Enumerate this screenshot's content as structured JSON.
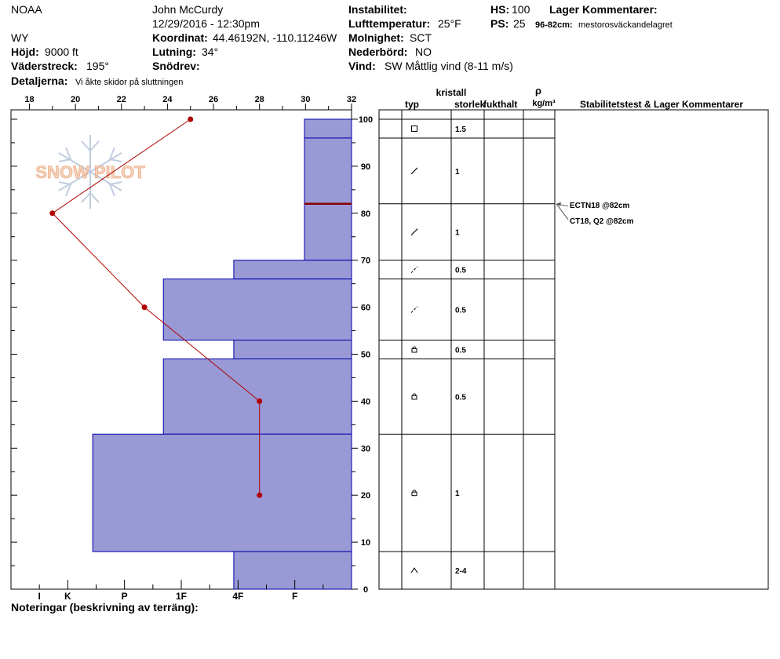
{
  "header": {
    "org": "NOAA",
    "observer": "John McCurdy",
    "datetime": "12/29/2016 - 12:30pm",
    "state": "WY",
    "coord_label": "Koordinat:",
    "coord_value": "44.46192N, -110.11246W",
    "elev_label": "Höjd:",
    "elev_value": "9000 ft",
    "slope_label": "Lutning:",
    "slope_value": "34°",
    "aspect_label": "Väderstreck:",
    "aspect_value": "195°",
    "drift_label": "Snödrev:",
    "drift_value": "",
    "details_label": "Detaljerna:",
    "details_value": "Vi åkte skidor på sluttningen",
    "instab_label": "Instabilitet:",
    "instab_value": "",
    "airtemp_label": "Lufttemperatur:",
    "airtemp_value": "25°F",
    "sky_label": "Molnighet:",
    "sky_value": "SCT",
    "precip_label": "Nederbörd:",
    "precip_value": "NO",
    "wind_label": "Vind:",
    "wind_value": "SW  Måttlig vind (8-11 m/s)",
    "hs_label": "HS:",
    "hs_value": "100",
    "ps_label": "PS:",
    "ps_value": "25",
    "layer_comments_label": "Lager Kommentarer:",
    "layer_comment_range": "96-82cm:",
    "layer_comment_text": "mestorosväckandelagret"
  },
  "logo_text": "SNOW PILOT",
  "table_headers": {
    "crystal": "kristall",
    "type": "typ",
    "size": "storlek",
    "moisture": "fukthalt",
    "rho": "ρ",
    "density_unit": "kg/m³",
    "stability": "Stabilitetstest & Lager Kommentarer"
  },
  "footer": {
    "notes_label": "Noteringar (beskrivning av terräng):"
  },
  "colors": {
    "hardness_fill": "#9999d6",
    "hardness_stroke": "#0000aa",
    "temp_line": "#b00000",
    "weak_layer": "#880000"
  },
  "chart_data": {
    "type": "snow-profile",
    "temperature_axis": {
      "label_values": [
        18,
        20,
        22,
        24,
        26,
        28,
        30,
        32
      ],
      "range": [
        17.2,
        32
      ]
    },
    "height_axis": {
      "ticks": [
        0,
        10,
        20,
        30,
        40,
        50,
        60,
        70,
        80,
        90,
        100
      ],
      "range": [
        0,
        102
      ]
    },
    "hardness_axis": {
      "labels": [
        "I",
        "K",
        "P",
        "1F",
        "4F",
        "F"
      ],
      "label_values": [
        11,
        10,
        8,
        6,
        4,
        2
      ]
    },
    "temperature_profile": [
      {
        "height": 100,
        "temp": 25
      },
      {
        "height": 80,
        "temp": 19
      },
      {
        "height": 60,
        "temp": 23
      },
      {
        "height": 40,
        "temp": 28
      },
      {
        "height": 20,
        "temp": 28
      }
    ],
    "layers": [
      {
        "top": 100,
        "bottom": 96,
        "hardness": 1.66,
        "grain": "square",
        "size": "1.5"
      },
      {
        "top": 96,
        "bottom": 82,
        "hardness": 1.66,
        "grain": "slash",
        "size": "1"
      },
      {
        "top": 82,
        "bottom": 70,
        "hardness": 1.66,
        "grain": "slash",
        "size": "1"
      },
      {
        "top": 70,
        "bottom": 66,
        "hardness": 4.15,
        "grain": "dashslash",
        "size": "0.5"
      },
      {
        "top": 66,
        "bottom": 53,
        "hardness": 6.63,
        "grain": "dashslash",
        "size": "0.5"
      },
      {
        "top": 53,
        "bottom": 49,
        "hardness": 4.15,
        "grain": "lock",
        "size": "0.5"
      },
      {
        "top": 49,
        "bottom": 33,
        "hardness": 6.63,
        "grain": "lock",
        "size": "0.5"
      },
      {
        "top": 33,
        "bottom": 8,
        "hardness": 9.12,
        "grain": "lock",
        "size": "1"
      },
      {
        "top": 8,
        "bottom": 0,
        "hardness": 4.15,
        "grain": "caret",
        "size": "2-4"
      }
    ],
    "weak_layer_height": 82,
    "stability_tests": [
      {
        "label": "ECTN18 @82cm",
        "height": 82
      },
      {
        "label": "CT18, Q2 @82cm",
        "height": 82
      }
    ]
  }
}
